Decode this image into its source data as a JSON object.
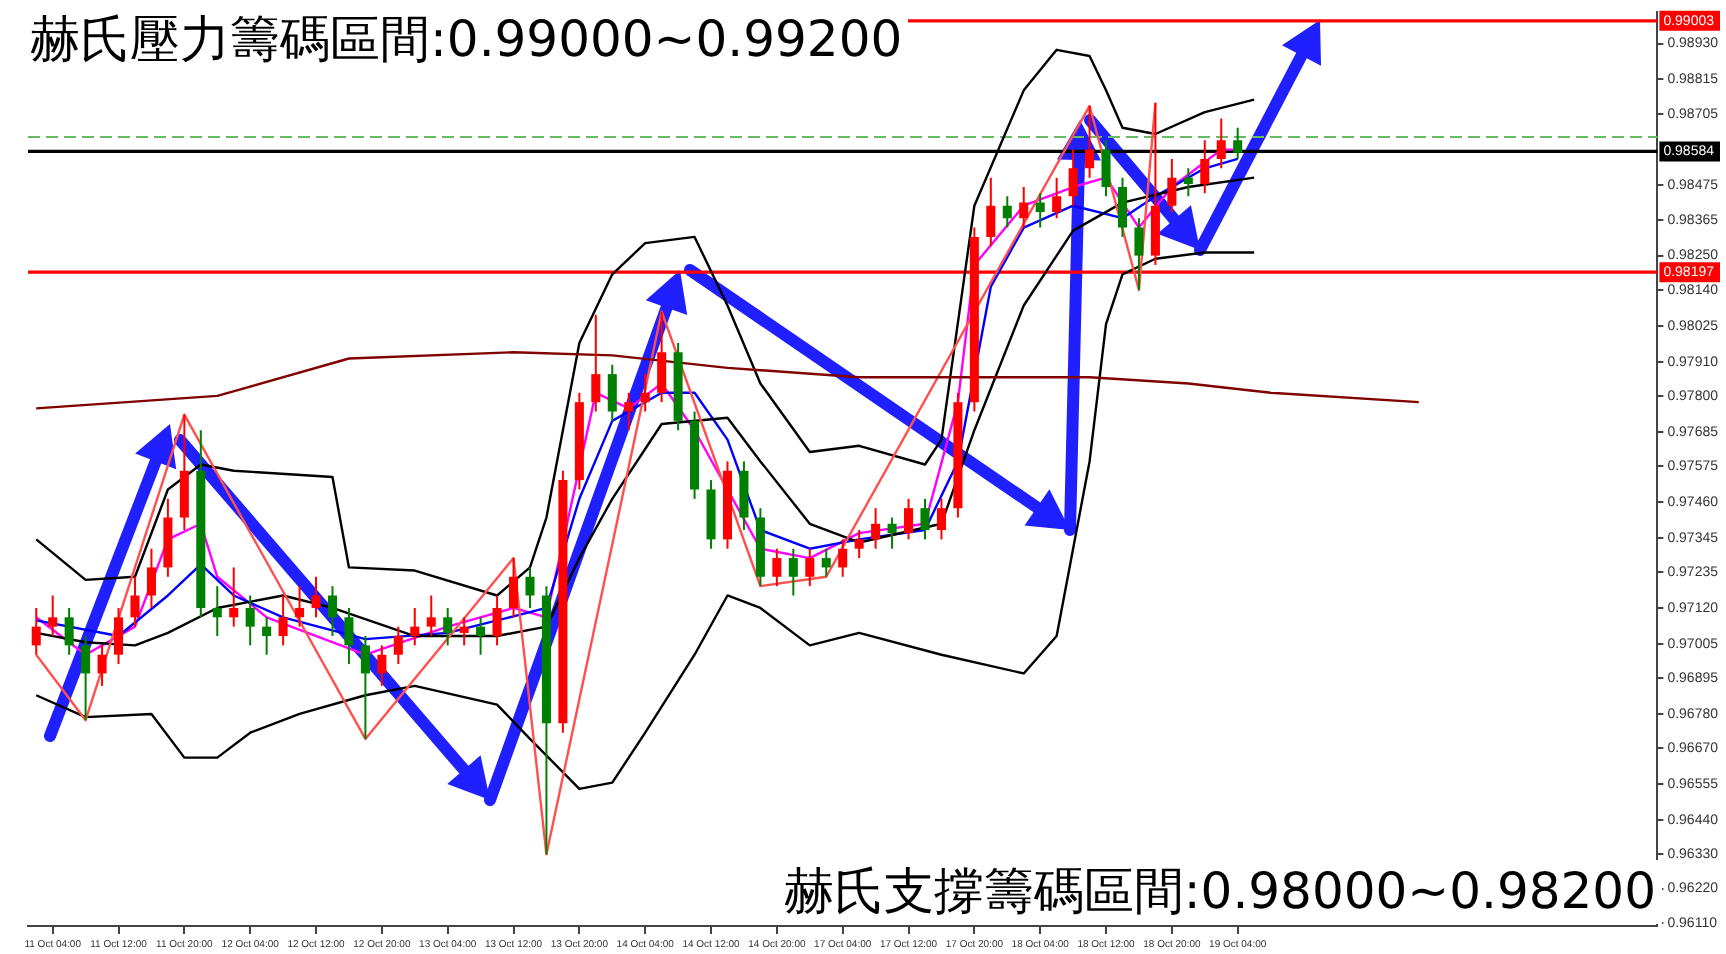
{
  "chart_data": {
    "type": "candlestick",
    "title": "赫氏壓力籌碼區間:0.99000~0.99200",
    "annotations": [
      "赫氏支撐籌碼區間:0.98000~0.98200"
    ],
    "categories": [
      null,
      "11 Oct 04:00",
      null,
      null,
      null,
      "11 Oct 12:00",
      null,
      null,
      null,
      "11 Oct 20:00",
      null,
      null,
      null,
      "12 Oct 04:00",
      null,
      null,
      null,
      "12 Oct 12:00",
      null,
      null,
      null,
      "12 Oct 20:00",
      null,
      null,
      null,
      "13 Oct 04:00",
      null,
      null,
      null,
      "13 Oct 12:00",
      null,
      null,
      null,
      "13 Oct 20:00",
      null,
      null,
      null,
      "14 Oct 04:00",
      null,
      null,
      null,
      "14 Oct 12:00",
      null,
      null,
      null,
      "14 Oct 20:00",
      null,
      null,
      null,
      "17 Oct 04:00",
      null,
      null,
      null,
      "17 Oct 12:00",
      null,
      null,
      null,
      "17 Oct 20:00",
      null,
      null,
      null,
      "18 Oct 04:00",
      null,
      null,
      null,
      "18 Oct 12:00",
      null,
      null,
      null,
      "18 Oct 20:00",
      null,
      null,
      null,
      "19 Oct 04:00",
      null,
      null,
      null,
      null,
      null,
      null,
      null,
      null,
      null,
      null,
      null,
      null,
      null,
      null,
      null,
      null,
      null,
      null,
      null,
      null,
      null,
      null,
      null,
      null,
      null
    ],
    "ylim": [
      0.961,
      0.9903
    ],
    "yticks": [
      {
        "value": 0.9893,
        "label": "0.98930"
      },
      {
        "value": 0.98815,
        "label": "0.98815"
      },
      {
        "value": 0.98705,
        "label": "0.98705"
      },
      {
        "value": 0.98475,
        "label": "0.98475"
      },
      {
        "value": 0.98365,
        "label": "0.98365"
      },
      {
        "value": 0.9825,
        "label": "0.98250"
      },
      {
        "value": 0.9814,
        "label": "0.98140"
      },
      {
        "value": 0.98025,
        "label": "0.98025"
      },
      {
        "value": 0.9791,
        "label": "0.97910"
      },
      {
        "value": 0.978,
        "label": "0.97800"
      },
      {
        "value": 0.97685,
        "label": "0.97685"
      },
      {
        "value": 0.97575,
        "label": "0.97575"
      },
      {
        "value": 0.9746,
        "label": "0.97460"
      },
      {
        "value": 0.97345,
        "label": "0.97345"
      },
      {
        "value": 0.97235,
        "label": "0.97235"
      },
      {
        "value": 0.9712,
        "label": "0.97120"
      },
      {
        "value": 0.97005,
        "label": "0.97005"
      },
      {
        "value": 0.96895,
        "label": "0.96895"
      },
      {
        "value": 0.9678,
        "label": "0.96780"
      },
      {
        "value": 0.9667,
        "label": "0.96670"
      },
      {
        "value": 0.96555,
        "label": "0.96555"
      },
      {
        "value": 0.9644,
        "label": "0.96440"
      },
      {
        "value": 0.9633,
        "label": "0.96330"
      },
      {
        "value": 0.9622,
        "label": "0.96220"
      },
      {
        "value": 0.9611,
        "label": "0.96110"
      }
    ],
    "ref_lines": [
      {
        "axis": "y",
        "value": 0.99003,
        "label": "0.99003",
        "color": "#ff0000"
      },
      {
        "axis": "y",
        "value": 0.98197,
        "label": "0.98197",
        "color": "#ff0000"
      },
      {
        "axis": "y",
        "value": 0.98584,
        "label": "0.98584",
        "color": "#000000"
      },
      {
        "axis": "y",
        "value": 0.9863,
        "color": "#66bb66",
        "line_style": "dashed"
      }
    ],
    "grid": false,
    "legend": false,
    "series": [
      {
        "type": "line",
        "color": "#800000",
        "values": [
          0.9776,
          null,
          null,
          null,
          null,
          null,
          null,
          null,
          null,
          null,
          null,
          0.978,
          null,
          null,
          null,
          null,
          null,
          null,
          null,
          0.9792,
          null,
          null,
          null,
          null,
          null,
          null,
          null,
          null,
          null,
          0.9794,
          null,
          null,
          null,
          null,
          null,
          0.9793,
          null,
          null,
          null,
          null,
          null,
          null,
          0.9789,
          null,
          null,
          null,
          null,
          null,
          null,
          null,
          0.9786,
          null,
          null,
          null,
          null,
          null,
          null,
          null,
          null,
          null,
          null,
          null,
          null,
          null,
          0.9786,
          null,
          null,
          null,
          null,
          null,
          0.9784,
          null,
          null,
          null,
          null,
          0.9781,
          null,
          null,
          null,
          null,
          null,
          null,
          null,
          null,
          0.9778,
          null,
          null,
          null,
          null,
          null,
          null,
          null,
          null,
          null,
          null,
          null,
          null,
          null,
          null
        ]
      },
      {
        "type": "line",
        "color": "#ff5050",
        "values": [
          0.9697,
          null,
          null,
          0.9676,
          null,
          null,
          null,
          null,
          null,
          0.9774,
          null,
          null,
          null,
          null,
          null,
          null,
          null,
          null,
          null,
          null,
          0.967,
          null,
          null,
          null,
          null,
          null,
          null,
          null,
          null,
          0.9728,
          null,
          0.9633,
          null,
          null,
          null,
          null,
          null,
          null,
          0.9807,
          null,
          null,
          null,
          null,
          null,
          0.9719,
          null,
          null,
          null,
          0.9722,
          null,
          null,
          null,
          null,
          null,
          null,
          null,
          null,
          null,
          null,
          null,
          null,
          null,
          null,
          null,
          0.9873,
          null,
          null,
          0.9814,
          0.9874,
          null,
          null,
          null,
          null,
          null,
          null,
          null,
          null,
          null,
          null,
          null,
          null,
          null,
          null,
          null,
          null,
          null,
          null,
          null,
          null,
          null,
          null,
          null,
          null,
          null,
          null,
          null,
          null,
          null,
          null
        ]
      },
      {
        "type": "line",
        "color": "#000000",
        "values": [
          0.9734,
          null,
          null,
          0.9721,
          null,
          null,
          0.9722,
          null,
          0.975,
          null,
          0.9758,
          null,
          0.9756,
          null,
          null,
          null,
          null,
          null,
          0.9754,
          0.9725,
          null,
          null,
          null,
          0.9724,
          null,
          null,
          null,
          null,
          0.9716,
          null,
          0.9725,
          0.9741,
          null,
          0.9797,
          null,
          0.9819,
          null,
          0.9829,
          null,
          null,
          0.9831,
          null,
          0.9809,
          null,
          0.9784,
          null,
          null,
          0.9762,
          null,
          null,
          0.9764,
          null,
          null,
          null,
          0.9758,
          0.9766,
          null,
          0.9841,
          null,
          null,
          0.9878,
          null,
          0.9891,
          null,
          0.9889,
          0.9878,
          0.9866,
          null,
          0.9864,
          null,
          null,
          0.9871,
          null,
          null,
          0.9875,
          null,
          null,
          null,
          null,
          null,
          null,
          null,
          null,
          null,
          null,
          null,
          null,
          null,
          null,
          null,
          null,
          null,
          null,
          null,
          null,
          null,
          null,
          null,
          null
        ]
      },
      {
        "type": "line",
        "color": "#000000",
        "values": [
          0.9704,
          null,
          null,
          0.9701,
          null,
          null,
          0.97,
          null,
          0.9704,
          null,
          null,
          0.9712,
          null,
          null,
          null,
          0.9716,
          null,
          null,
          0.9712,
          null,
          null,
          null,
          null,
          0.9703,
          null,
          null,
          null,
          null,
          0.9703,
          null,
          null,
          0.9706,
          null,
          0.9728,
          null,
          0.9747,
          null,
          null,
          0.9771,
          null,
          null,
          null,
          0.9773,
          null,
          0.9759,
          null,
          null,
          0.9739,
          null,
          null,
          0.9733,
          null,
          null,
          null,
          null,
          0.9739,
          null,
          0.9769,
          null,
          null,
          0.9809,
          null,
          null,
          0.9833,
          null,
          null,
          0.9842,
          null,
          null,
          null,
          0.9847,
          null,
          null,
          null,
          0.985,
          null,
          null,
          null,
          null,
          null,
          null,
          null,
          null,
          null,
          null,
          null,
          null,
          null,
          null,
          null,
          null,
          null,
          null,
          null,
          null,
          null,
          null,
          null,
          null
        ]
      },
      {
        "type": "line",
        "color": "#000000",
        "values": [
          0.9684,
          null,
          null,
          0.9677,
          null,
          null,
          null,
          0.9678,
          null,
          0.9664,
          null,
          0.9664,
          null,
          0.9672,
          null,
          null,
          0.9678,
          null,
          null,
          null,
          0.9684,
          null,
          null,
          0.9687,
          null,
          null,
          null,
          null,
          0.9681,
          null,
          0.967,
          null,
          null,
          0.9654,
          null,
          0.9656,
          null,
          0.9672,
          null,
          null,
          0.9697,
          null,
          0.9716,
          null,
          0.9712,
          null,
          null,
          0.97,
          null,
          null,
          0.9704,
          null,
          null,
          null,
          null,
          0.9697,
          null,
          null,
          null,
          null,
          0.9691,
          null,
          0.9703,
          null,
          0.9759,
          0.9803,
          0.9819,
          null,
          0.9824,
          null,
          null,
          0.9826,
          null,
          null,
          0.9826,
          null,
          null,
          null,
          null,
          null,
          null,
          null,
          null,
          null,
          null,
          null,
          null,
          null,
          null,
          null,
          null,
          null,
          null,
          null,
          null,
          null,
          null,
          null,
          null
        ]
      },
      {
        "type": "line",
        "color": "#0000ff",
        "values": [
          0.9708,
          null,
          null,
          null,
          null,
          0.9703,
          null,
          null,
          0.9716,
          null,
          0.9726,
          null,
          0.9716,
          null,
          null,
          0.9709,
          null,
          null,
          null,
          null,
          0.9702,
          null,
          null,
          null,
          null,
          0.9704,
          null,
          null,
          0.9708,
          null,
          null,
          0.9712,
          null,
          0.9747,
          null,
          0.9772,
          null,
          null,
          0.9781,
          null,
          0.9781,
          null,
          0.9766,
          null,
          0.9737,
          null,
          null,
          0.9731,
          null,
          null,
          0.9734,
          null,
          null,
          null,
          0.9737,
          null,
          0.9759,
          null,
          0.9815,
          null,
          0.9834,
          null,
          null,
          0.9841,
          null,
          null,
          0.9837,
          null,
          0.9844,
          null,
          null,
          0.9853,
          null,
          0.9856,
          null,
          null,
          null,
          null,
          null,
          null,
          null,
          null,
          null,
          null,
          null,
          null,
          null,
          null,
          null,
          null,
          null,
          null,
          null,
          null,
          null,
          null,
          null,
          null,
          null
        ]
      },
      {
        "type": "line",
        "color": "#ff00ff",
        "values": [
          0.9709,
          null,
          null,
          0.9697,
          null,
          null,
          0.9706,
          null,
          0.9734,
          null,
          0.9739,
          0.9722,
          null,
          null,
          0.9709,
          null,
          null,
          null,
          null,
          null,
          0.9697,
          null,
          null,
          null,
          null,
          0.9706,
          null,
          null,
          null,
          0.9712,
          null,
          0.9709,
          null,
          null,
          0.9781,
          null,
          0.9776,
          null,
          0.9784,
          null,
          0.9769,
          null,
          0.975,
          null,
          0.9731,
          null,
          null,
          0.9728,
          null,
          null,
          0.9736,
          null,
          null,
          null,
          0.9739,
          null,
          0.9778,
          0.9822,
          null,
          null,
          0.9841,
          null,
          null,
          0.9847,
          null,
          0.985,
          null,
          0.9834,
          null,
          0.9847,
          null,
          null,
          0.9859,
          0.9859,
          null,
          null,
          null,
          null,
          null,
          null,
          null,
          null,
          null,
          null,
          null,
          null,
          null,
          null,
          null,
          null,
          null,
          null,
          null,
          null,
          null,
          null,
          null,
          null,
          null
        ]
      },
      {
        "ohlc": [
          [
            0.97,
            0.9712,
            0.9697,
            0.9706
          ],
          [
            0.9706,
            0.9716,
            0.9703,
            0.9709
          ],
          [
            0.9709,
            0.9712,
            0.9697,
            0.97
          ],
          [
            0.97,
            0.9703,
            0.9676,
            0.9691
          ],
          [
            0.9691,
            0.97,
            0.9687,
            0.9697
          ],
          [
            0.9697,
            0.9712,
            0.9694,
            0.9709
          ],
          [
            0.9709,
            0.9722,
            0.9706,
            0.9716
          ],
          [
            0.9716,
            0.9731,
            0.9712,
            0.9725
          ],
          [
            0.9725,
            0.9747,
            0.9722,
            0.9741
          ],
          [
            0.9741,
            0.9774,
            0.9737,
            0.9756
          ],
          [
            0.9756,
            0.9769,
            0.9709,
            0.9712
          ],
          [
            0.9712,
            0.9719,
            0.9703,
            0.9709
          ],
          [
            0.9709,
            0.9725,
            0.9706,
            0.9712
          ],
          [
            0.9712,
            0.9716,
            0.97,
            0.9706
          ],
          [
            0.9706,
            0.9709,
            0.9697,
            0.9703
          ],
          [
            0.9703,
            0.9716,
            0.97,
            0.9709
          ],
          [
            0.9709,
            0.9719,
            0.9706,
            0.9712
          ],
          [
            0.9712,
            0.9722,
            0.9709,
            0.9716
          ],
          [
            0.9716,
            0.9719,
            0.9703,
            0.9709
          ],
          [
            0.9709,
            0.9712,
            0.9694,
            0.97
          ],
          [
            0.97,
            0.9703,
            0.967,
            0.9691
          ],
          [
            0.9691,
            0.97,
            0.9687,
            0.9697
          ],
          [
            0.9697,
            0.9706,
            0.9694,
            0.9703
          ],
          [
            0.9703,
            0.9712,
            0.97,
            0.9706
          ],
          [
            0.9706,
            0.9716,
            0.9703,
            0.9709
          ],
          [
            0.9709,
            0.9712,
            0.97,
            0.9704
          ],
          [
            0.9704,
            0.9709,
            0.97,
            0.9706
          ],
          [
            0.9706,
            0.9709,
            0.9697,
            0.9703
          ],
          [
            0.9703,
            0.9716,
            0.97,
            0.9712
          ],
          [
            0.9712,
            0.9728,
            0.9709,
            0.9722
          ],
          [
            0.9722,
            0.9725,
            0.9712,
            0.9716
          ],
          [
            0.9716,
            0.9719,
            0.9633,
            0.9675
          ],
          [
            0.9675,
            0.9756,
            0.9672,
            0.9753
          ],
          [
            0.9753,
            0.9781,
            0.975,
            0.9778
          ],
          [
            0.9778,
            0.9806,
            0.9775,
            0.9787
          ],
          [
            0.9787,
            0.979,
            0.9772,
            0.9775
          ],
          [
            0.9775,
            0.9781,
            0.9769,
            0.9778
          ],
          [
            0.9778,
            0.9787,
            0.9775,
            0.9781
          ],
          [
            0.9781,
            0.9807,
            0.9778,
            0.9794
          ],
          [
            0.9794,
            0.9797,
            0.9769,
            0.9772
          ],
          [
            0.9772,
            0.9775,
            0.9747,
            0.975
          ],
          [
            0.975,
            0.9753,
            0.9731,
            0.9734
          ],
          [
            0.9734,
            0.9759,
            0.9731,
            0.9756
          ],
          [
            0.9756,
            0.9759,
            0.9737,
            0.9741
          ],
          [
            0.9741,
            0.9744,
            0.9719,
            0.9722
          ],
          [
            0.9722,
            0.9731,
            0.9719,
            0.9728
          ],
          [
            0.9728,
            0.9731,
            0.9716,
            0.9722
          ],
          [
            0.9722,
            0.9731,
            0.9719,
            0.9728
          ],
          [
            0.9728,
            0.9731,
            0.9722,
            0.9725
          ],
          [
            0.9725,
            0.9734,
            0.9722,
            0.9731
          ],
          [
            0.9731,
            0.9737,
            0.9728,
            0.9734
          ],
          [
            0.9734,
            0.9744,
            0.9731,
            0.9739
          ],
          [
            0.9739,
            0.9741,
            0.9731,
            0.9736
          ],
          [
            0.9736,
            0.9747,
            0.9734,
            0.9744
          ],
          [
            0.9744,
            0.9747,
            0.9734,
            0.9737
          ],
          [
            0.9737,
            0.9747,
            0.9734,
            0.9744
          ],
          [
            0.9744,
            0.9781,
            0.9741,
            0.9778
          ],
          [
            0.9778,
            0.9834,
            0.9775,
            0.9831
          ],
          [
            0.9831,
            0.985,
            0.9828,
            0.9841
          ],
          [
            0.9841,
            0.9844,
            0.9834,
            0.9837
          ],
          [
            0.9837,
            0.9847,
            0.9834,
            0.9842
          ],
          [
            0.9842,
            0.9845,
            0.9834,
            0.9839
          ],
          [
            0.9839,
            0.985,
            0.9837,
            0.9844
          ],
          [
            0.9844,
            0.9859,
            0.9841,
            0.9853
          ],
          [
            0.9853,
            0.9873,
            0.985,
            0.9859
          ],
          [
            0.9859,
            0.9862,
            0.9844,
            0.9847
          ],
          [
            0.9847,
            0.985,
            0.9831,
            0.9834
          ],
          [
            0.9834,
            0.9837,
            0.9814,
            0.9825
          ],
          [
            0.9825,
            0.9874,
            0.9822,
            0.9841
          ],
          [
            0.9841,
            0.9856,
            0.9839,
            0.985
          ],
          [
            0.985,
            0.9853,
            0.9844,
            0.9848
          ],
          [
            0.9848,
            0.9862,
            0.9845,
            0.9856
          ],
          [
            0.9856,
            0.9869,
            0.9853,
            0.9862
          ],
          [
            0.9862,
            0.9866,
            0.9856,
            0.9858
          ],
          null,
          null,
          null,
          null,
          null,
          null,
          null,
          null,
          null,
          null,
          null,
          null,
          null,
          null,
          null,
          null,
          null,
          null,
          null,
          null,
          null,
          null,
          null,
          null,
          null
        ],
        "colors": [
          "#ff0000",
          "#ff0000",
          "#008000",
          "#008000",
          "#ff0000",
          "#ff0000",
          "#ff0000",
          "#ff0000",
          "#ff0000",
          "#ff0000",
          "#008000",
          "#008000",
          "#ff0000",
          "#008000",
          "#008000",
          "#ff0000",
          "#ff0000",
          "#ff0000",
          "#008000",
          "#008000",
          "#008000",
          "#ff0000",
          "#ff0000",
          "#ff0000",
          "#ff0000",
          "#008000",
          "#ff0000",
          "#008000",
          "#ff0000",
          "#ff0000",
          "#008000",
          "#008000",
          "#ff0000",
          "#ff0000",
          "#ff0000",
          "#008000",
          "#ff0000",
          "#ff0000",
          "#ff0000",
          "#008000",
          "#008000",
          "#008000",
          "#ff0000",
          "#008000",
          "#008000",
          "#ff0000",
          "#008000",
          "#ff0000",
          "#008000",
          "#ff0000",
          "#ff0000",
          "#ff0000",
          "#008000",
          "#ff0000",
          "#008000",
          "#ff0000",
          "#ff0000",
          "#ff0000",
          "#ff0000",
          "#008000",
          "#ff0000",
          "#008000",
          "#ff0000",
          "#ff0000",
          "#ff0000",
          "#008000",
          "#008000",
          "#008000",
          "#ff0000",
          "#ff0000",
          "#008000",
          "#ff0000",
          "#ff0000",
          "#008000",
          null,
          null,
          null,
          null,
          null,
          null,
          null,
          null,
          null,
          null,
          null,
          null,
          null,
          null,
          null,
          null,
          null,
          null,
          null,
          null,
          null,
          null,
          null,
          null,
          null
        ]
      }
    ]
  }
}
